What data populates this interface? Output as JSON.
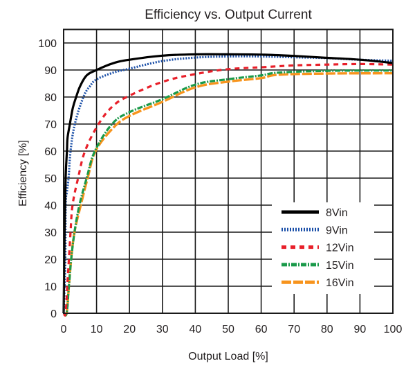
{
  "chart_data": {
    "type": "line",
    "title": "Efficiency vs. Output Current",
    "xlabel": "Output Load [%]",
    "ylabel": "Efficiency [%]",
    "xlim": [
      0,
      100
    ],
    "ylim": [
      0,
      105
    ],
    "grid": true,
    "legend_position": "bottom-right",
    "xticks": [
      0,
      10,
      20,
      30,
      40,
      50,
      60,
      70,
      80,
      90,
      100
    ],
    "xtick_labels": [
      "0",
      "10",
      "20",
      "30",
      "40",
      "50",
      "60",
      "70",
      "80",
      "90",
      "100"
    ],
    "yticks": [
      0,
      10,
      20,
      30,
      40,
      50,
      60,
      70,
      80,
      90,
      100
    ],
    "ytick_labels": [
      "0",
      "10",
      "20",
      "30",
      "40",
      "50",
      "60",
      "70",
      "80",
      "90",
      "100"
    ],
    "series": [
      {
        "name": "8Vin",
        "color": "#000000",
        "style": "solid",
        "x": [
          0,
          0.3,
          0.6,
          1.0,
          1.2,
          1.9,
          2.8,
          3.8,
          5,
          7,
          10,
          15,
          20,
          30,
          40,
          50,
          60,
          70,
          80,
          90,
          100
        ],
        "y": [
          0,
          30,
          50,
          60,
          65,
          70,
          76,
          80,
          84,
          88,
          90,
          92.5,
          93.8,
          95.3,
          95.8,
          95.8,
          95.7,
          95.2,
          94.5,
          93.8,
          92.6
        ]
      },
      {
        "name": "9Vin",
        "color": "#1a4fa8",
        "style": "dotted",
        "x": [
          0,
          0.5,
          0.6,
          1.0,
          1.5,
          2.1,
          3.4,
          6,
          8,
          10,
          15,
          20,
          30,
          40,
          50,
          60,
          70,
          80,
          90,
          100
        ],
        "y": [
          0,
          20,
          40,
          45,
          50,
          60,
          70,
          80,
          84,
          86.5,
          89,
          90.5,
          93.3,
          94.6,
          95,
          95,
          94.7,
          94.4,
          93.8,
          93.4
        ]
      },
      {
        "name": "12Vin",
        "color": "#e8202a",
        "style": "dashed",
        "x": [
          0,
          0.6,
          1.1,
          1.6,
          2.1,
          2.7,
          4.4,
          6.5,
          10.6,
          15,
          20,
          30,
          40,
          50,
          60,
          70,
          80,
          90,
          100
        ],
        "y": [
          0,
          0,
          10,
          20,
          30,
          40,
          50,
          60,
          70,
          76.7,
          80.5,
          85.6,
          88.5,
          90.3,
          91,
          91.7,
          92,
          92.2,
          92
        ]
      },
      {
        "name": "15Vin",
        "color": "#1a9a4a",
        "style": "dashdot",
        "x": [
          0,
          0.9,
          1.6,
          2.3,
          3.3,
          4.8,
          7,
          9.5,
          14.7,
          20,
          30,
          40,
          50,
          60,
          65,
          80,
          100
        ],
        "y": [
          0,
          0,
          10,
          20,
          30,
          40,
          50,
          60,
          70,
          74.4,
          79.2,
          84.6,
          86.6,
          88,
          89,
          89.7,
          89.8
        ]
      },
      {
        "name": "16Vin",
        "color": "#f7941d",
        "style": "longdash",
        "x": [
          0,
          0.9,
          1.6,
          2.3,
          3.3,
          5.2,
          7.3,
          9.7,
          15,
          20,
          30,
          40,
          50,
          60,
          65,
          80,
          100
        ],
        "y": [
          0,
          0,
          10,
          20,
          30,
          40,
          50,
          60,
          68.5,
          73,
          78.2,
          83.6,
          85.7,
          87,
          88.2,
          88.7,
          88.8
        ]
      }
    ]
  }
}
